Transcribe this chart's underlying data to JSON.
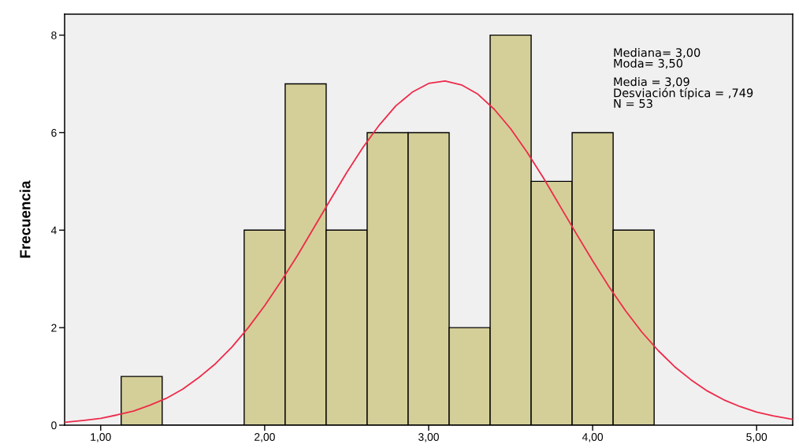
{
  "chart_data": {
    "type": "histogram",
    "ylabel": "Frecuencia",
    "annotations": [
      "Mediana= 3,00\nModa= 3,50",
      "Media = 3,09\nDesviación típica = ,749\nN = 53"
    ],
    "series": [
      {
        "color": "#d4cf98",
        "bins": [
          1.125,
          1.375,
          1.625,
          1.875,
          2.125,
          2.375,
          2.625,
          2.875,
          3.125,
          3.375,
          3.625,
          3.875,
          4.125,
          4.375
        ],
        "values": [
          1,
          0,
          0,
          4,
          7,
          4,
          6,
          6,
          2,
          8,
          5,
          6,
          4
        ]
      },
      {
        "type": "line",
        "color": "#ee2a4a",
        "x": [
          0.78,
          0.9,
          1.0,
          1.1,
          1.2,
          1.3,
          1.4,
          1.5,
          1.6,
          1.7,
          1.8,
          1.9,
          2.0,
          2.1,
          2.2,
          2.3,
          2.4,
          2.5,
          2.6,
          2.7,
          2.8,
          2.9,
          3.0,
          3.1,
          3.2,
          3.3,
          3.4,
          3.5,
          3.6,
          3.7,
          3.8,
          3.9,
          4.0,
          4.1,
          4.2,
          4.3,
          4.4,
          4.5,
          4.6,
          4.7,
          4.8,
          4.9,
          5.0,
          5.1,
          5.2,
          5.22
        ],
        "values": [
          0.06,
          0.1,
          0.14,
          0.21,
          0.29,
          0.41,
          0.55,
          0.74,
          0.98,
          1.26,
          1.6,
          2.0,
          2.45,
          2.95,
          3.48,
          4.05,
          4.62,
          5.18,
          5.7,
          6.16,
          6.55,
          6.83,
          7.01,
          7.06,
          6.98,
          6.79,
          6.48,
          6.08,
          5.6,
          5.07,
          4.5,
          3.93,
          3.37,
          2.84,
          2.35,
          1.91,
          1.53,
          1.2,
          0.93,
          0.7,
          0.52,
          0.38,
          0.27,
          0.19,
          0.13,
          0.12
        ]
      }
    ],
    "xlim": [
      0.78,
      5.22
    ],
    "ylim": [
      0,
      8.43
    ],
    "xticks": [
      {
        "value": 1,
        "label": "1,00"
      },
      {
        "value": 2,
        "label": "2,00"
      },
      {
        "value": 3,
        "label": "3,00"
      },
      {
        "value": 4,
        "label": "4,00"
      },
      {
        "value": 5,
        "label": "5,00"
      }
    ],
    "yticks": [
      0,
      2,
      4,
      6,
      8
    ]
  }
}
